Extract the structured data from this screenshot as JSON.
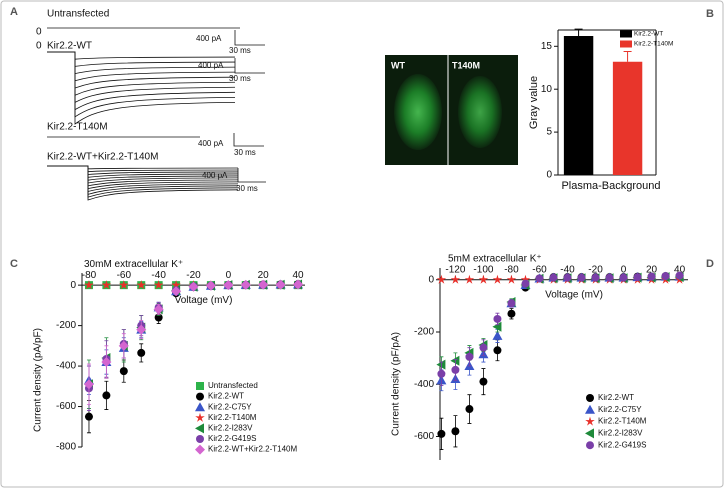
{
  "panels": [
    "A",
    "B",
    "C",
    "D"
  ],
  "panel_a": {
    "zero": "0",
    "untransfected": "Untransfected",
    "wt": "Kir2.2-WT",
    "t140m": "Kir2.2-T140M",
    "wt_t140m": "Kir2.2-WT+Kir2.2-T140M",
    "scale_current": "400 pA",
    "scale_time": "30 ms"
  },
  "micrograph": {
    "left_label": "WT",
    "right_label": "T140M"
  },
  "chart_data": [
    {
      "type": "bar",
      "ylabel": "Gray value",
      "xlabel": "Plasma-Background",
      "categories": [
        "Plasma-Background"
      ],
      "series": [
        {
          "name": "Kir2.2-WT",
          "color": "#000000",
          "values": [
            16.2
          ],
          "errors": [
            0.8
          ]
        },
        {
          "name": "Kir2.2-T140M",
          "color": "#e8352b",
          "values": [
            13.2
          ],
          "errors": [
            1.2
          ]
        }
      ],
      "ylim": [
        0,
        16.9
      ],
      "yticks": [
        0,
        5,
        10,
        15
      ],
      "legend": "top-right"
    },
    {
      "type": "scatter",
      "title": "30mM extracellular K⁺",
      "xlabel": "Voltage (mV)",
      "ylabel": "Current density (pA/pF)",
      "x": [
        -80,
        -70,
        -60,
        -50,
        -40,
        -30,
        -20,
        -10,
        0,
        10,
        20,
        30,
        40
      ],
      "series": [
        {
          "name": "Untransfected",
          "color": "#2db34a",
          "marker": "square",
          "values": [
            0,
            0,
            0,
            0,
            0,
            0,
            0,
            0,
            0,
            0,
            0,
            0,
            0
          ]
        },
        {
          "name": "Kir2.2-WT",
          "color": "#000000",
          "marker": "circle",
          "values": [
            -650,
            -545,
            -425,
            -335,
            -160,
            -40,
            -10,
            -5,
            0,
            2,
            3,
            4,
            5
          ],
          "errors": [
            80,
            70,
            55,
            45,
            30,
            10,
            5,
            3,
            2,
            2,
            2,
            2,
            2
          ]
        },
        {
          "name": "Kir2.2-C75Y",
          "color": "#3a55c8",
          "marker": "triangle",
          "values": [
            -470,
            -380,
            -310,
            -220,
            -110,
            -30,
            -8,
            -3,
            0,
            1,
            2,
            3,
            3
          ],
          "errors": [
            70,
            60,
            50,
            40,
            25,
            8,
            4,
            2,
            2,
            2,
            2,
            2,
            2
          ]
        },
        {
          "name": "Kir2.2-T140M",
          "color": "#e8302a",
          "marker": "star",
          "values": [
            0,
            0,
            0,
            0,
            0,
            0,
            0,
            0,
            0,
            0,
            0,
            0,
            0
          ]
        },
        {
          "name": "Kir2.2-I283V",
          "color": "#1e8a3a",
          "marker": "triangle-left",
          "values": [
            -490,
            -360,
            -300,
            -210,
            -120,
            -25,
            -8,
            -3,
            0,
            1,
            2,
            2,
            3
          ],
          "errors": [
            120,
            100,
            80,
            60,
            30,
            8,
            4,
            2,
            2,
            2,
            2,
            2,
            2
          ]
        },
        {
          "name": "Kir2.2-G419S",
          "color": "#7a3fa8",
          "marker": "circle",
          "values": [
            -510,
            -365,
            -290,
            -200,
            -110,
            -25,
            -6,
            -2,
            0,
            1,
            2,
            2,
            3
          ],
          "errors": [
            110,
            90,
            70,
            50,
            25,
            8,
            4,
            2,
            2,
            2,
            2,
            2,
            2
          ]
        },
        {
          "name": "Kir2.2-WT+Kir2.2-T140M",
          "color": "#d466d0",
          "marker": "diamond",
          "values": [
            -490,
            -380,
            -300,
            -220,
            -120,
            -30,
            -8,
            -3,
            0,
            1,
            2,
            2,
            3
          ],
          "errors": [
            100,
            80,
            60,
            45,
            25,
            8,
            4,
            2,
            2,
            2,
            2,
            2,
            2
          ]
        }
      ],
      "xlim": [
        -84,
        44
      ],
      "ylim": [
        -800,
        60
      ],
      "xticks": [
        -80,
        -60,
        -40,
        -20,
        0,
        20,
        40
      ],
      "yticks": [
        -800,
        -600,
        -400,
        -200,
        0
      ],
      "legend": "bottom-right"
    },
    {
      "type": "scatter",
      "title": "5mM extracellular K⁺",
      "xlabel": "Voltage (mV)",
      "ylabel": "Current density (pF/pA)",
      "x": [
        -130,
        -120,
        -110,
        -100,
        -90,
        -80,
        -70,
        -60,
        -50,
        -40,
        -30,
        -20,
        -10,
        0,
        10,
        20,
        30,
        40
      ],
      "series": [
        {
          "name": "Kir2.2-WT",
          "color": "#000000",
          "marker": "circle",
          "values": [
            -590,
            -580,
            -495,
            -390,
            -270,
            -130,
            -30,
            5,
            10,
            10,
            10,
            10,
            10,
            10,
            12,
            12,
            14,
            15
          ],
          "errors": [
            60,
            60,
            55,
            50,
            40,
            20,
            8,
            3,
            3,
            3,
            3,
            3,
            3,
            3,
            3,
            3,
            3,
            3
          ]
        },
        {
          "name": "Kir2.2-C75Y",
          "color": "#3a55c8",
          "marker": "triangle",
          "values": [
            -385,
            -380,
            -330,
            -285,
            -215,
            -90,
            -20,
            5,
            8,
            8,
            8,
            8,
            8,
            8,
            10,
            10,
            12,
            12
          ],
          "errors": [
            40,
            40,
            35,
            30,
            25,
            15,
            6,
            3,
            3,
            3,
            3,
            3,
            3,
            3,
            3,
            3,
            3,
            3
          ]
        },
        {
          "name": "Kir2.2-T140M",
          "color": "#e8302a",
          "marker": "star",
          "values": [
            0,
            0,
            0,
            0,
            0,
            0,
            0,
            0,
            0,
            0,
            0,
            0,
            0,
            0,
            0,
            0,
            0,
            0
          ]
        },
        {
          "name": "Kir2.2-I283V",
          "color": "#1e8a3a",
          "marker": "triangle-left",
          "values": [
            -325,
            -310,
            -280,
            -250,
            -180,
            -85,
            -20,
            4,
            6,
            6,
            6,
            6,
            6,
            6,
            8,
            8,
            10,
            10
          ],
          "errors": [
            30,
            30,
            28,
            25,
            20,
            12,
            5,
            3,
            3,
            3,
            3,
            3,
            3,
            3,
            3,
            3,
            3,
            3
          ]
        },
        {
          "name": "Kir2.2-G419S",
          "color": "#7a3fa8",
          "marker": "circle",
          "values": [
            -360,
            -345,
            -295,
            -260,
            -150,
            -90,
            -15,
            5,
            8,
            8,
            8,
            8,
            8,
            8,
            10,
            12,
            14,
            16
          ],
          "errors": [
            45,
            40,
            35,
            30,
            22,
            14,
            5,
            3,
            3,
            3,
            3,
            3,
            3,
            3,
            3,
            3,
            3,
            3
          ]
        }
      ],
      "xlim": [
        -131,
        46
      ],
      "ylim": [
        -690,
        45
      ],
      "xticks": [
        -120,
        -100,
        -80,
        -60,
        -40,
        -20,
        0,
        20,
        40
      ],
      "yticks": [
        -600,
        -400,
        -200,
        0
      ],
      "legend": "bottom-right"
    }
  ]
}
